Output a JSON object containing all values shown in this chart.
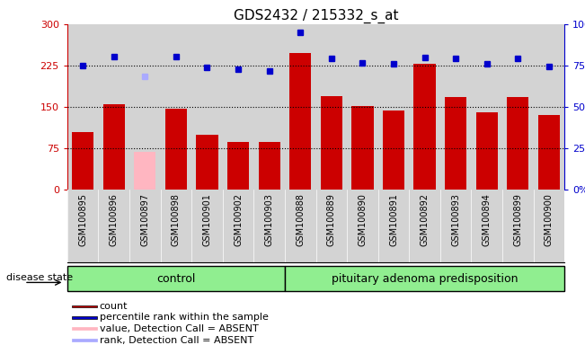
{
  "title": "GDS2432 / 215332_s_at",
  "samples": [
    "GSM100895",
    "GSM100896",
    "GSM100897",
    "GSM100898",
    "GSM100901",
    "GSM100902",
    "GSM100903",
    "GSM100888",
    "GSM100889",
    "GSM100890",
    "GSM100891",
    "GSM100892",
    "GSM100893",
    "GSM100894",
    "GSM100899",
    "GSM100900"
  ],
  "bar_values": [
    105,
    155,
    68,
    147,
    100,
    87,
    87,
    247,
    170,
    152,
    143,
    228,
    168,
    140,
    168,
    135
  ],
  "bar_absent": [
    false,
    false,
    true,
    false,
    false,
    false,
    false,
    false,
    false,
    false,
    false,
    false,
    false,
    false,
    false,
    false
  ],
  "rank_values": [
    225,
    242,
    205,
    242,
    222,
    218,
    215,
    285,
    238,
    230,
    228,
    240,
    238,
    228,
    238,
    224
  ],
  "rank_absent": [
    false,
    false,
    true,
    false,
    false,
    false,
    false,
    false,
    false,
    false,
    false,
    false,
    false,
    false,
    false,
    false
  ],
  "control_count": 7,
  "group_labels": [
    "control",
    "pituitary adenoma predisposition"
  ],
  "ylim_left": [
    0,
    300
  ],
  "ylim_right": [
    0,
    100
  ],
  "yticks_left": [
    0,
    75,
    150,
    225,
    300
  ],
  "ytick_labels_left": [
    "0",
    "75",
    "150",
    "225",
    "300"
  ],
  "yticks_right": [
    0,
    25,
    50,
    75,
    100
  ],
  "ytick_labels_right": [
    "0%",
    "25%",
    "50%",
    "75%",
    "100%"
  ],
  "bar_color": "#CC0000",
  "bar_absent_color": "#FFB6C1",
  "rank_color": "#0000CC",
  "rank_absent_color": "#AAAAFF",
  "bg_color": "#D3D3D3",
  "control_bg": "#90EE90",
  "adenoma_bg": "#90EE90",
  "hline_values": [
    75,
    150,
    225
  ],
  "legend_items": [
    {
      "label": "count",
      "color": "#CC0000"
    },
    {
      "label": "percentile rank within the sample",
      "color": "#0000CC"
    },
    {
      "label": "value, Detection Call = ABSENT",
      "color": "#FFB6C1"
    },
    {
      "label": "rank, Detection Call = ABSENT",
      "color": "#AAAAFF"
    }
  ]
}
